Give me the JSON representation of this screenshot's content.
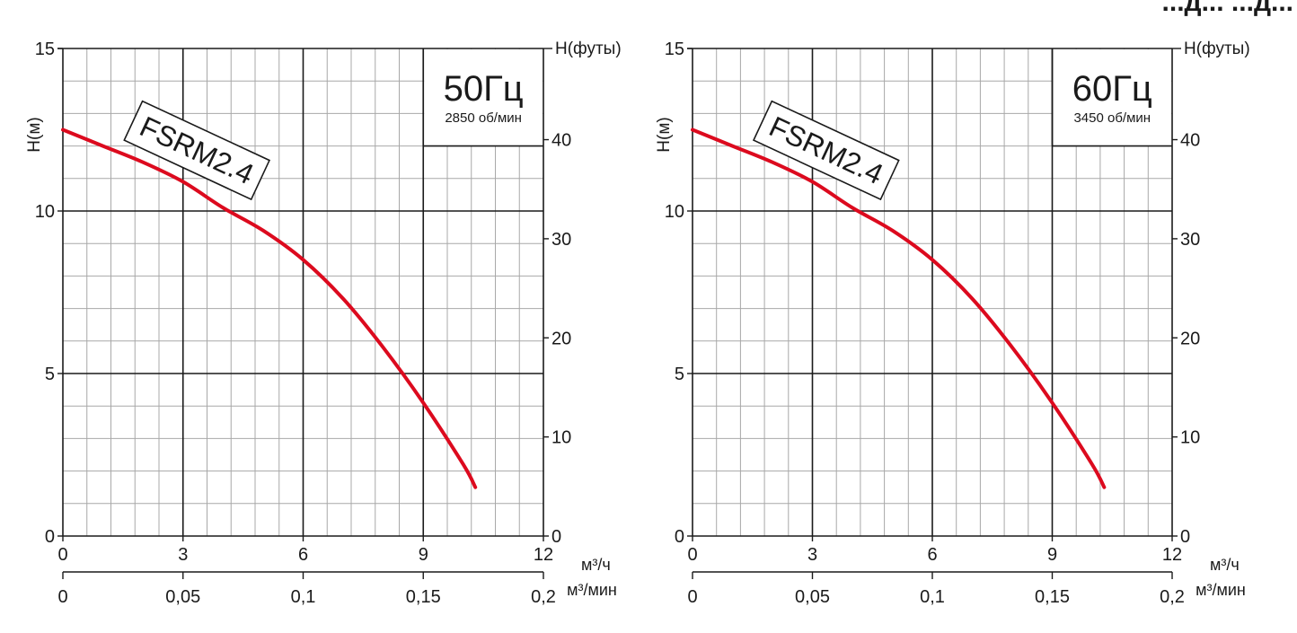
{
  "header_fragment": "...д... ...д...",
  "chart_data": [
    {
      "type": "line",
      "freq_label": "50Гц",
      "speed_label": "2850 об/мин",
      "curve_label": "FSRM2.4",
      "ylabel_left": "H(м)",
      "ylabel_right": "H(футы)",
      "xunit_primary": "м³/ч",
      "xunit_secondary": "м³/мин",
      "xlim": [
        0,
        12
      ],
      "ylim": [
        0,
        15
      ],
      "ylim_right": [
        0,
        49.2
      ],
      "xlim_secondary": [
        0,
        0.2
      ],
      "xticks": [
        "0",
        "3",
        "6",
        "9",
        "12"
      ],
      "xticks_secondary": [
        "0",
        "0,05",
        "0,1",
        "0,15",
        "0,2"
      ],
      "yticks_left": [
        "0",
        "5",
        "10",
        "15"
      ],
      "yticks_right": [
        "0",
        "10",
        "20",
        "30",
        "40"
      ],
      "grid": true,
      "series": [
        {
          "color": "#dc0a1e",
          "x": [
            0,
            1,
            2,
            3,
            4,
            5,
            6,
            7,
            8,
            9,
            10,
            10.3
          ],
          "y": [
            12.5,
            12.0,
            11.5,
            10.9,
            10.1,
            9.4,
            8.5,
            7.3,
            5.8,
            4.1,
            2.2,
            1.5
          ]
        }
      ]
    },
    {
      "type": "line",
      "freq_label": "60Гц",
      "speed_label": "3450 об/мин",
      "curve_label": "FSRM2.4",
      "ylabel_left": "H(м)",
      "ylabel_right": "H(футы)",
      "xunit_primary": "м³/ч",
      "xunit_secondary": "м³/мин",
      "xlim": [
        0,
        12
      ],
      "ylim": [
        0,
        15
      ],
      "ylim_right": [
        0,
        49.2
      ],
      "xlim_secondary": [
        0,
        0.2
      ],
      "xticks": [
        "0",
        "3",
        "6",
        "9",
        "12"
      ],
      "xticks_secondary": [
        "0",
        "0,05",
        "0,1",
        "0,15",
        "0,2"
      ],
      "yticks_left": [
        "0",
        "5",
        "10",
        "15"
      ],
      "yticks_right": [
        "0",
        "10",
        "20",
        "30",
        "40"
      ],
      "grid": true,
      "series": [
        {
          "color": "#dc0a1e",
          "x": [
            0,
            1,
            2,
            3,
            4,
            5,
            6,
            7,
            8,
            9,
            10,
            10.3
          ],
          "y": [
            12.5,
            12.0,
            11.5,
            10.9,
            10.1,
            9.4,
            8.5,
            7.3,
            5.8,
            4.1,
            2.2,
            1.5
          ]
        }
      ]
    }
  ]
}
